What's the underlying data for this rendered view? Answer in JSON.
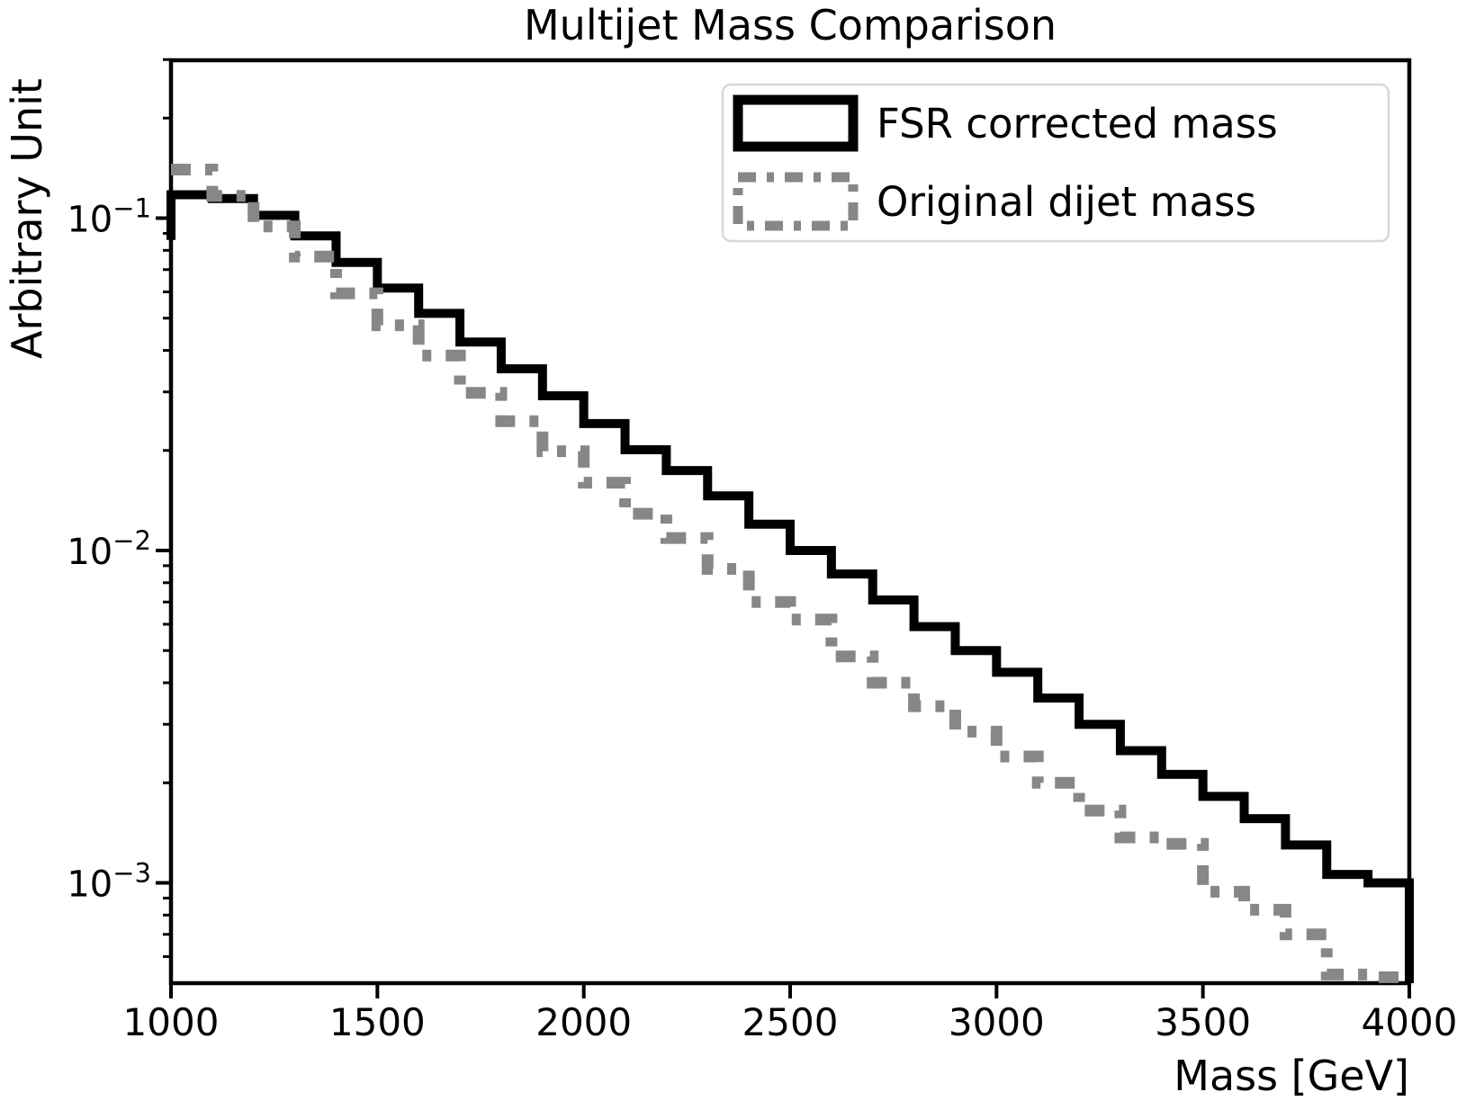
{
  "figure": {
    "title": "Multijet Mass Comparison",
    "xlabel": "Mass [GeV]",
    "ylabel": "Arbitrary Unit",
    "background": "#ffffff",
    "spine_color": "#000000"
  },
  "chart_data": {
    "type": "step-histogram",
    "title": "Multijet Mass Comparison",
    "xlabel": "Mass [GeV]",
    "ylabel": "Arbitrary Unit",
    "yscale": "log",
    "xlim": [
      1000,
      4000
    ],
    "ylim": [
      0.0005,
      0.3
    ],
    "grid": false,
    "legend_position": "upper right",
    "bin_edges": [
      1000,
      1100,
      1200,
      1300,
      1400,
      1500,
      1600,
      1700,
      1800,
      1900,
      2000,
      2100,
      2200,
      2300,
      2400,
      2500,
      2600,
      2700,
      2800,
      2900,
      3000,
      3100,
      3200,
      3300,
      3400,
      3500,
      3600,
      3700,
      3800,
      3900,
      4000
    ],
    "series": [
      {
        "name": "FSR corrected mass",
        "color": "#000000",
        "style": "solid",
        "linewidth": 10,
        "start_y": 0.086,
        "close_right": true,
        "values": [
          0.1176,
          0.1145,
          0.102,
          0.0884,
          0.0736,
          0.0616,
          0.0517,
          0.0424,
          0.0352,
          0.0292,
          0.0241,
          0.0201,
          0.0174,
          0.0146,
          0.012,
          0.01,
          0.0085,
          0.0071,
          0.0059,
          0.005,
          0.0043,
          0.0036,
          0.003,
          0.0025,
          0.00212,
          0.00182,
          0.00156,
          0.0013,
          0.00106,
          0.001
        ]
      },
      {
        "name": "Original dijet mass",
        "color": "#878787",
        "style": "dashdot",
        "linewidth": 13,
        "start_y": null,
        "close_right": false,
        "values": [
          0.14,
          0.1167,
          0.0944,
          0.0766,
          0.0594,
          0.0476,
          0.0386,
          0.0298,
          0.0245,
          0.0199,
          0.016,
          0.0129,
          0.0109,
          0.0088,
          0.007,
          0.0062,
          0.0048,
          0.004,
          0.0034,
          0.00285,
          0.0024,
          0.002,
          0.00165,
          0.00137,
          0.00131,
          0.00094,
          0.00083,
          0.0007,
          0.00053,
          0.00052
        ]
      }
    ],
    "x_ticks": [
      {
        "value": 1000,
        "label": "1000"
      },
      {
        "value": 1500,
        "label": "1500"
      },
      {
        "value": 2000,
        "label": "2000"
      },
      {
        "value": 2500,
        "label": "2500"
      },
      {
        "value": 3000,
        "label": "3000"
      },
      {
        "value": 3500,
        "label": "3500"
      },
      {
        "value": 4000,
        "label": "4000"
      }
    ],
    "y_ticks": [
      {
        "value": 0.1,
        "base": "10",
        "exp": "−1"
      },
      {
        "value": 0.01,
        "base": "10",
        "exp": "−2"
      },
      {
        "value": 0.001,
        "base": "10",
        "exp": "−3"
      }
    ]
  },
  "legend": {
    "entries": [
      {
        "label": "FSR corrected mass"
      },
      {
        "label": "Original dijet mass"
      }
    ]
  }
}
